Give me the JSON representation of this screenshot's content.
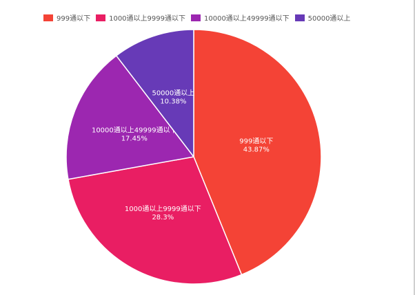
{
  "legend": {
    "items": [
      {
        "label": "999通以下",
        "color": "#F44336"
      },
      {
        "label": "1000通以上9999通以下",
        "color": "#E91E63"
      },
      {
        "label": "10000通以上49999通以下",
        "color": "#9C27B0"
      },
      {
        "label": "50000通以上",
        "color": "#673AB7"
      }
    ]
  },
  "chart_data": {
    "type": "pie",
    "title": "",
    "legend_position": "top-left",
    "slices": [
      {
        "label": "999通以下",
        "value": 43.87,
        "value_label": "43.87%",
        "color": "#F44336"
      },
      {
        "label": "1000通以上9999通以下",
        "value": 28.3,
        "value_label": "28.3%",
        "color": "#E91E63"
      },
      {
        "label": "10000通以上49999通以下",
        "value": 17.45,
        "value_label": "17.45%",
        "color": "#9C27B0"
      },
      {
        "label": "50000通以上",
        "value": 10.38,
        "value_label": "10.38%",
        "color": "#673AB7"
      }
    ]
  }
}
